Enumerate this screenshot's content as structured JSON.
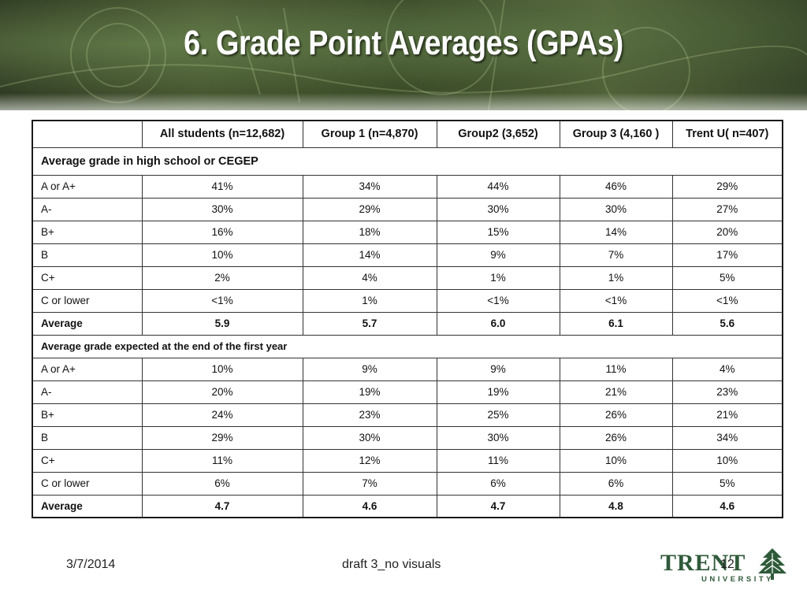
{
  "slide": {
    "title": "6. Grade Point Averages (GPAs)",
    "footer_date": "3/7/2014",
    "footer_center": "draft 3_no visuals",
    "page_number": "12",
    "logo_text": "TRENT",
    "logo_subtext": "UNIVERSITY"
  },
  "table": {
    "headers": [
      "",
      "All students (n=12,682)",
      "Group 1 (n=4,870)",
      "Group2 (3,652)",
      "Group 3 (4,160 )",
      "Trent U( n=407)"
    ],
    "section1": {
      "title": "Average grade in high school or CEGEP",
      "rows": [
        [
          "A  or A+",
          "41%",
          "34%",
          "44%",
          "46%",
          "29%"
        ],
        [
          "A-",
          "30%",
          "29%",
          "30%",
          "30%",
          "27%"
        ],
        [
          "B+",
          "16%",
          "18%",
          "15%",
          "14%",
          "20%"
        ],
        [
          "B",
          "10%",
          "14%",
          "9%",
          "7%",
          "17%"
        ],
        [
          "C+",
          "2%",
          "4%",
          "1%",
          "1%",
          "5%"
        ],
        [
          "C or lower",
          "<1%",
          "1%",
          "<1%",
          "<1%",
          "<1%"
        ],
        [
          "Average",
          "5.9",
          "5.7",
          "6.0",
          "6.1",
          "5.6"
        ]
      ]
    },
    "section2": {
      "title": "Average grade expected at the end of the first year",
      "rows": [
        [
          "A or A+",
          "10%",
          "9%",
          "9%",
          "11%",
          "4%"
        ],
        [
          "A-",
          "20%",
          "19%",
          "19%",
          "21%",
          "23%"
        ],
        [
          "B+",
          "24%",
          "23%",
          "25%",
          "26%",
          "21%"
        ],
        [
          "B",
          "29%",
          "30%",
          "30%",
          "26%",
          "34%"
        ],
        [
          "C+",
          "11%",
          "12%",
          "11%",
          "10%",
          "10%"
        ],
        [
          "C or lower",
          "6%",
          "7%",
          "6%",
          "6%",
          "5%"
        ],
        [
          "Average",
          "4.7",
          "4.6",
          "4.7",
          "4.8",
          "4.6"
        ]
      ]
    }
  },
  "colors": {
    "logo_green": "#2f5a3a",
    "header_dark": "#2e3a22"
  },
  "icons": {
    "logo": "trent-tree-icon"
  }
}
